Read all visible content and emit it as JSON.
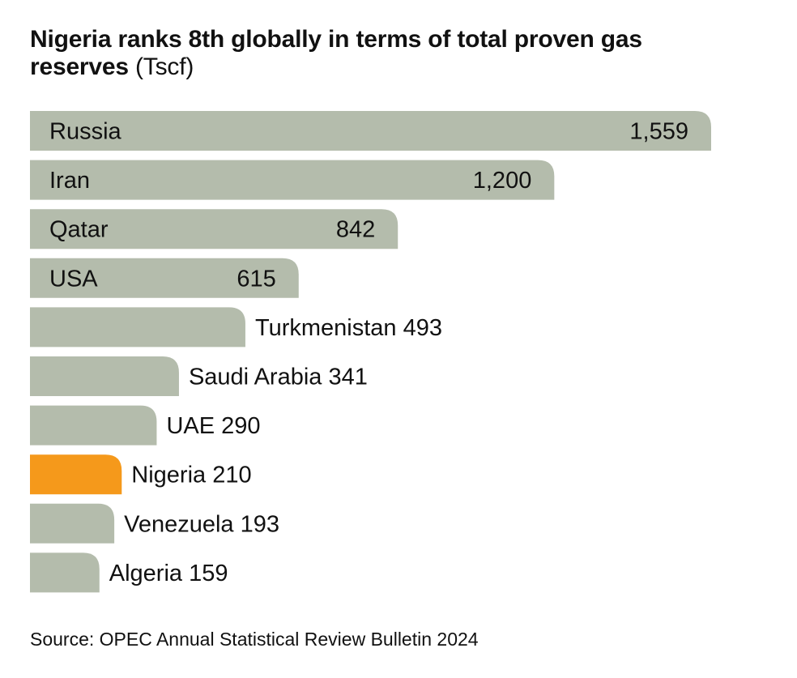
{
  "title": {
    "bold_text": "Nigeria ranks 8th globally in terms of total proven gas reserves",
    "unit_text": "(Tscf)"
  },
  "source": "Source: OPEC Annual Statistical Review Bulletin 2024",
  "colors": {
    "bar": "#b4bcac",
    "highlight": "#f5991b",
    "text": "#111111"
  },
  "chart_data": {
    "type": "bar",
    "orientation": "horizontal",
    "title": "Nigeria ranks 8th globally in terms of total proven gas reserves (Tscf)",
    "categories": [
      "Russia",
      "Iran",
      "Qatar",
      "USA",
      "Turkmenistan",
      "Saudi Arabia",
      "UAE",
      "Nigeria",
      "Venezuela",
      "Algeria"
    ],
    "values": [
      1559,
      1200,
      842,
      615,
      493,
      341,
      290,
      210,
      193,
      159
    ],
    "value_labels": [
      "1,559",
      "1,200",
      "842",
      "615",
      "493",
      "341",
      "290",
      "210",
      "193",
      "159"
    ],
    "highlight": "Nigeria",
    "grid": false,
    "legend": "none"
  }
}
